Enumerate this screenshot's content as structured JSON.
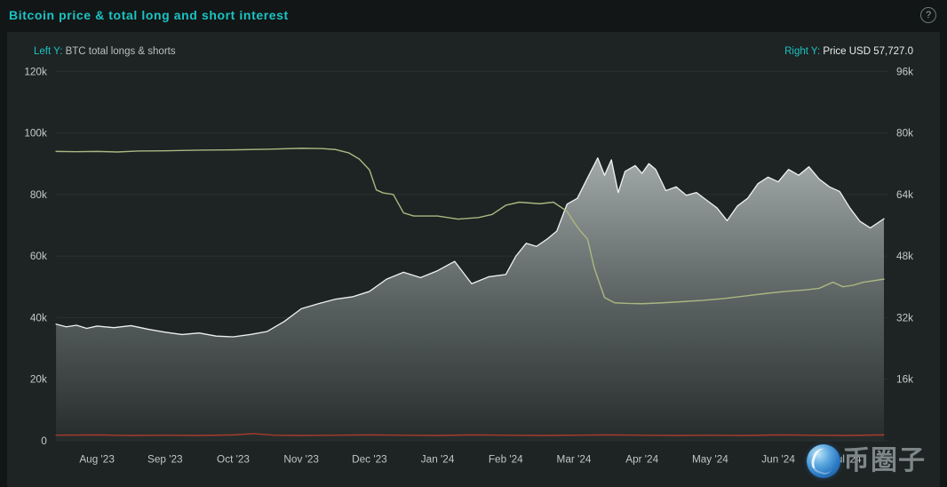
{
  "page": {
    "title": "Bitcoin price & total long and short interest",
    "help_icon": "?"
  },
  "legend": {
    "left_prefix": "Left Y:",
    "left_text": " BTC total longs & shorts",
    "right_prefix": "Right Y:",
    "right_text": " Price USD 57,727.0"
  },
  "watermark": {
    "logo": "blue-globe-logo",
    "text": "币圈子"
  },
  "chart_data": {
    "type": "line",
    "title": "Bitcoin price & total long and short interest",
    "grid": "horizontal",
    "legend_position": "top",
    "values_unit": "thousands",
    "x_domain": [
      -0.6,
      11.6
    ],
    "x_ticks": [
      {
        "x": 0,
        "label": "Aug '23"
      },
      {
        "x": 1,
        "label": "Sep '23"
      },
      {
        "x": 2,
        "label": "Oct '23"
      },
      {
        "x": 3,
        "label": "Nov '23"
      },
      {
        "x": 4,
        "label": "Dec '23"
      },
      {
        "x": 5,
        "label": "Jan '24"
      },
      {
        "x": 6,
        "label": "Feb '24"
      },
      {
        "x": 7,
        "label": "Mar '24"
      },
      {
        "x": 8,
        "label": "Apr '24"
      },
      {
        "x": 9,
        "label": "May '24"
      },
      {
        "x": 10,
        "label": "Jun '24"
      },
      {
        "x": 11,
        "label": "Jul '24"
      }
    ],
    "left_axis": {
      "label": "BTC total longs & shorts",
      "max": 120,
      "ticks": [
        {
          "v": 0,
          "label": "0"
        },
        {
          "v": 20,
          "label": "20k"
        },
        {
          "v": 40,
          "label": "40k"
        },
        {
          "v": 60,
          "label": "60k"
        },
        {
          "v": 80,
          "label": "80k"
        },
        {
          "v": 100,
          "label": "100k"
        },
        {
          "v": 120,
          "label": "120k"
        }
      ]
    },
    "right_axis": {
      "label": "Price USD",
      "max": 96,
      "ticks": [
        {
          "v": 16,
          "label": "16k"
        },
        {
          "v": 32,
          "label": "32k"
        },
        {
          "v": 48,
          "label": "48k"
        },
        {
          "v": 64,
          "label": "64k"
        },
        {
          "v": 80,
          "label": "80k"
        },
        {
          "v": 96,
          "label": "96k"
        }
      ]
    },
    "colors": {
      "price": "#edf0f0",
      "longs": "#a8b780",
      "shorts": "#a93a2c",
      "grid": "#2b3232",
      "accent": "#1cc3c3"
    },
    "series": [
      {
        "name": "BTC price USD",
        "axis": "right",
        "color": "#edf0f0",
        "fill": true,
        "last_value_label": "57,727.0",
        "x": [
          -0.6,
          -0.45,
          -0.3,
          -0.15,
          0,
          0.25,
          0.5,
          0.75,
          1.0,
          1.25,
          1.5,
          1.75,
          2.0,
          2.25,
          2.5,
          2.75,
          3.0,
          3.25,
          3.5,
          3.75,
          4.0,
          4.25,
          4.5,
          4.75,
          5.0,
          5.25,
          5.5,
          5.75,
          6.0,
          6.15,
          6.3,
          6.45,
          6.6,
          6.75,
          6.9,
          7.05,
          7.2,
          7.35,
          7.45,
          7.55,
          7.65,
          7.75,
          7.9,
          8.0,
          8.1,
          8.2,
          8.35,
          8.5,
          8.65,
          8.8,
          8.95,
          9.1,
          9.25,
          9.4,
          9.55,
          9.7,
          9.85,
          10.0,
          10.15,
          10.3,
          10.45,
          10.6,
          10.75,
          10.9,
          11.05,
          11.2,
          11.35,
          11.55
        ],
        "values": [
          30.3,
          29.6,
          30.0,
          29.2,
          29.8,
          29.4,
          29.9,
          29.0,
          28.2,
          27.6,
          28.0,
          27.2,
          27.0,
          27.6,
          28.4,
          31.0,
          34.3,
          35.6,
          36.8,
          37.4,
          38.8,
          42.0,
          43.8,
          42.4,
          44.2,
          46.6,
          40.8,
          42.6,
          43.2,
          48.0,
          51.3,
          50.5,
          52.3,
          54.5,
          61.5,
          63.0,
          68.3,
          73.5,
          69.0,
          73.0,
          64.5,
          70.0,
          71.5,
          69.5,
          72.0,
          70.5,
          65.0,
          66.0,
          63.8,
          64.5,
          62.5,
          60.5,
          57.2,
          61.0,
          63.0,
          66.8,
          68.5,
          67.3,
          70.5,
          69.0,
          71.2,
          68.0,
          66.0,
          64.8,
          60.5,
          57.0,
          55.3,
          57.7
        ]
      },
      {
        "name": "BTC total longs",
        "axis": "left",
        "color": "#a8b780",
        "fill": false,
        "x": [
          -0.6,
          -0.3,
          0,
          0.3,
          0.6,
          1.0,
          1.5,
          2.0,
          2.5,
          3.0,
          3.3,
          3.5,
          3.7,
          3.85,
          4.0,
          4.1,
          4.2,
          4.35,
          4.5,
          4.65,
          5.0,
          5.3,
          5.6,
          5.8,
          6.0,
          6.2,
          6.5,
          6.7,
          6.9,
          7.0,
          7.1,
          7.2,
          7.3,
          7.45,
          7.6,
          7.8,
          8.0,
          8.3,
          8.6,
          8.9,
          9.2,
          9.5,
          9.8,
          10.1,
          10.4,
          10.6,
          10.8,
          10.95,
          11.1,
          11.25,
          11.55
        ],
        "values": [
          94.0,
          93.9,
          94.0,
          93.8,
          94.1,
          94.2,
          94.4,
          94.5,
          94.7,
          95.0,
          94.9,
          94.6,
          93.5,
          91.5,
          88.0,
          81.5,
          80.5,
          80.0,
          74.0,
          73.0,
          73.0,
          72.0,
          72.5,
          73.5,
          76.5,
          77.5,
          77.0,
          77.5,
          74.5,
          71.0,
          68.0,
          65.5,
          56.0,
          46.5,
          44.8,
          44.6,
          44.5,
          44.8,
          45.2,
          45.6,
          46.2,
          47.0,
          47.8,
          48.5,
          49.0,
          49.5,
          51.5,
          50.0,
          50.5,
          51.5,
          52.5
        ]
      },
      {
        "name": "BTC total shorts",
        "axis": "left",
        "color": "#a93a2c",
        "fill": false,
        "x": [
          -0.6,
          0,
          0.5,
          1.0,
          1.5,
          2.0,
          2.3,
          2.6,
          3.0,
          3.5,
          4.0,
          4.5,
          5.0,
          5.5,
          6.0,
          6.5,
          7.0,
          7.5,
          8.0,
          8.5,
          9.0,
          9.5,
          10.0,
          10.5,
          11.0,
          11.55
        ],
        "values": [
          1.8,
          1.9,
          1.7,
          1.8,
          1.7,
          1.9,
          2.3,
          1.8,
          1.7,
          1.8,
          1.9,
          1.8,
          1.7,
          1.9,
          1.8,
          1.7,
          1.8,
          1.9,
          1.8,
          1.7,
          1.8,
          1.7,
          1.9,
          1.8,
          1.7,
          1.9
        ]
      }
    ]
  }
}
